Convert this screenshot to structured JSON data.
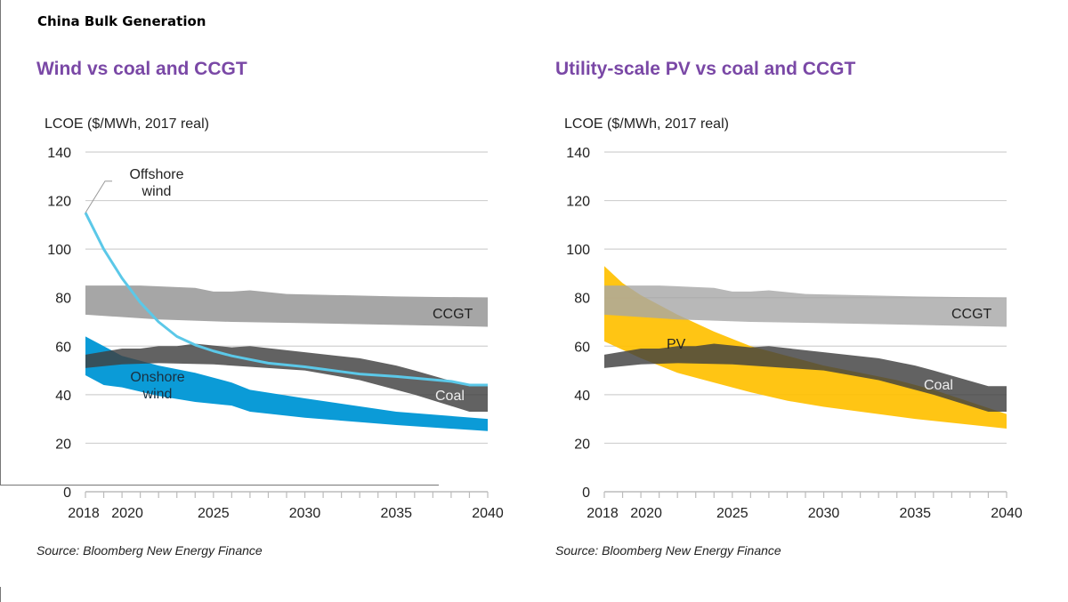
{
  "page_title": "China Bulk Generation",
  "colors": {
    "title": "#7a48a6",
    "ccgt": "#a6a6a6",
    "coal": "#3f3f3f",
    "onshore": "#0b9bd7",
    "offshore": "#5bc8e8",
    "pv": "#ffc000",
    "grid": "#d0d0d0"
  },
  "chart_data": [
    {
      "type": "area",
      "title": "Wind vs coal and CCGT",
      "ylabel": "LCOE ($/MWh, 2017 real)",
      "source": "Source: Bloomberg New Energy Finance",
      "xlim": [
        2018,
        2040
      ],
      "ylim": [
        0,
        140
      ],
      "x_ticks": [
        "2018",
        "2020",
        "2025",
        "2030",
        "2035",
        "2040"
      ],
      "y_ticks": [
        "0",
        "20",
        "40",
        "60",
        "80",
        "100",
        "120",
        "140"
      ],
      "grid": true,
      "series": [
        {
          "name": "CCGT",
          "kind": "band",
          "upper": [
            [
              2018,
              85
            ],
            [
              2021,
              85
            ],
            [
              2024,
              84
            ],
            [
              2025,
              82.5
            ],
            [
              2026,
              82.5
            ],
            [
              2027,
              83
            ],
            [
              2029,
              81.5
            ],
            [
              2035,
              80.5
            ],
            [
              2040,
              80
            ]
          ],
          "lower": [
            [
              2018,
              73
            ],
            [
              2022,
              71
            ],
            [
              2026,
              70
            ],
            [
              2030,
              69.5
            ],
            [
              2040,
              68
            ]
          ]
        },
        {
          "name": "Onshore wind",
          "kind": "band",
          "upper": [
            [
              2018,
              64
            ],
            [
              2020,
              56
            ],
            [
              2022,
              52
            ],
            [
              2024,
              49
            ],
            [
              2026,
              45
            ],
            [
              2027,
              42
            ],
            [
              2030,
              38.5
            ],
            [
              2035,
              33
            ],
            [
              2040,
              30
            ]
          ],
          "lower": [
            [
              2018,
              48
            ],
            [
              2019,
              44
            ],
            [
              2020,
              43
            ],
            [
              2022,
              39.5
            ],
            [
              2024,
              37
            ],
            [
              2026,
              35.5
            ],
            [
              2027,
              33
            ],
            [
              2030,
              30.5
            ],
            [
              2035,
              27.5
            ],
            [
              2040,
              25
            ]
          ]
        },
        {
          "name": "Coal",
          "kind": "band",
          "upper": [
            [
              2018,
              56.5
            ],
            [
              2020,
              59
            ],
            [
              2021,
              59
            ],
            [
              2022,
              60
            ],
            [
              2023,
              60
            ],
            [
              2024,
              61
            ],
            [
              2026,
              59.5
            ],
            [
              2027,
              60
            ],
            [
              2030,
              57.5
            ],
            [
              2033,
              55
            ],
            [
              2035,
              52
            ],
            [
              2036,
              50
            ],
            [
              2039,
              43.5
            ],
            [
              2040,
              43.5
            ]
          ],
          "lower": [
            [
              2018,
              51
            ],
            [
              2020,
              52.5
            ],
            [
              2022,
              53
            ],
            [
              2025,
              52.5
            ],
            [
              2030,
              50
            ],
            [
              2033,
              46
            ],
            [
              2036,
              40
            ],
            [
              2039,
              33
            ],
            [
              2040,
              33
            ]
          ]
        },
        {
          "name": "Offshore wind",
          "kind": "line",
          "values": [
            [
              2018,
              115
            ],
            [
              2019,
              100
            ],
            [
              2020,
              88
            ],
            [
              2021,
              78
            ],
            [
              2022,
              70
            ],
            [
              2023,
              64
            ],
            [
              2024,
              60.5
            ],
            [
              2025,
              58
            ],
            [
              2026,
              56
            ],
            [
              2027,
              54.5
            ],
            [
              2028,
              53
            ],
            [
              2030,
              51.5
            ],
            [
              2032,
              49.5
            ],
            [
              2033,
              48.5
            ],
            [
              2035,
              47.5
            ],
            [
              2038,
              45.5
            ],
            [
              2039,
              44
            ],
            [
              2040,
              44
            ]
          ]
        }
      ],
      "annotations": {
        "offshore": [
          "Offshore",
          "wind"
        ],
        "onshore": [
          "Onshore",
          "wind"
        ],
        "ccgt": "CCGT",
        "coal": "Coal"
      }
    },
    {
      "type": "area",
      "title": "Utility-scale  PV vs coal and CCGT",
      "ylabel": "LCOE ($/MWh, 2017 real)",
      "source": "Source: Bloomberg New Energy Finance",
      "xlim": [
        2018,
        2040
      ],
      "ylim": [
        0,
        140
      ],
      "x_ticks": [
        "2018",
        "2020",
        "2025",
        "2030",
        "2035",
        "2040"
      ],
      "y_ticks": [
        "0",
        "20",
        "40",
        "60",
        "80",
        "100",
        "120",
        "140"
      ],
      "grid": true,
      "series": [
        {
          "name": "PV",
          "kind": "band",
          "upper": [
            [
              2018,
              93
            ],
            [
              2019,
              86
            ],
            [
              2020,
              81
            ],
            [
              2022,
              73
            ],
            [
              2024,
              66
            ],
            [
              2026,
              60
            ],
            [
              2028,
              56
            ],
            [
              2030,
              52
            ],
            [
              2032,
              49
            ],
            [
              2034,
              46
            ],
            [
              2036,
              42
            ],
            [
              2038,
              37
            ],
            [
              2040,
              32
            ]
          ],
          "lower": [
            [
              2018,
              62
            ],
            [
              2020,
              55
            ],
            [
              2022,
              49
            ],
            [
              2024,
              45
            ],
            [
              2026,
              41
            ],
            [
              2028,
              37.5
            ],
            [
              2030,
              35
            ],
            [
              2035,
              30
            ],
            [
              2040,
              26
            ]
          ]
        },
        {
          "name": "CCGT",
          "kind": "band",
          "upper": [
            [
              2018,
              85
            ],
            [
              2021,
              85
            ],
            [
              2024,
              84
            ],
            [
              2025,
              82.5
            ],
            [
              2026,
              82.5
            ],
            [
              2027,
              83
            ],
            [
              2029,
              81.5
            ],
            [
              2035,
              80.5
            ],
            [
              2040,
              80
            ]
          ],
          "lower": [
            [
              2018,
              73
            ],
            [
              2022,
              71
            ],
            [
              2026,
              70
            ],
            [
              2030,
              69.5
            ],
            [
              2040,
              68
            ]
          ]
        },
        {
          "name": "Coal",
          "kind": "band",
          "upper": [
            [
              2018,
              56.5
            ],
            [
              2020,
              59
            ],
            [
              2021,
              59
            ],
            [
              2022,
              60
            ],
            [
              2023,
              60
            ],
            [
              2024,
              61
            ],
            [
              2026,
              59.5
            ],
            [
              2027,
              60
            ],
            [
              2030,
              57.5
            ],
            [
              2033,
              55
            ],
            [
              2035,
              52
            ],
            [
              2036,
              50
            ],
            [
              2039,
              43.5
            ],
            [
              2040,
              43.5
            ]
          ],
          "lower": [
            [
              2018,
              51
            ],
            [
              2020,
              52.5
            ],
            [
              2022,
              53
            ],
            [
              2025,
              52.5
            ],
            [
              2030,
              50
            ],
            [
              2033,
              46
            ],
            [
              2036,
              40
            ],
            [
              2039,
              33
            ],
            [
              2040,
              33
            ]
          ]
        }
      ],
      "annotations": {
        "pv": "PV",
        "ccgt": "CCGT",
        "coal": "Coal"
      }
    }
  ]
}
